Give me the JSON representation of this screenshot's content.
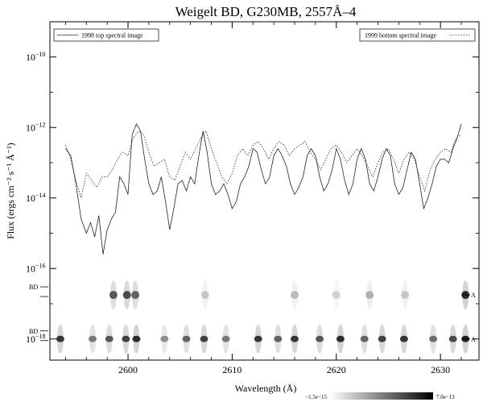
{
  "chart_data": {
    "type": "line",
    "title": "Weigelt BD, G230MB, 2557Å–4",
    "xlabel": "Wavelength (Å)",
    "ylabel": "Flux (ergs cm⁻² s⁻¹ Å⁻¹)",
    "xlim": [
      2592.5,
      2633.7
    ],
    "ylim_log10": [
      -18.6,
      -9
    ],
    "x_ticks": [
      {
        "value": 2600,
        "label": "2600"
      },
      {
        "value": 2610,
        "label": "2610"
      },
      {
        "value": 2620,
        "label": "2620"
      },
      {
        "value": 2630,
        "label": "2630"
      }
    ],
    "y_ticks": [
      {
        "exp": -10,
        "label": "10",
        "sup": "−10"
      },
      {
        "exp": -12,
        "label": "10",
        "sup": "−12"
      },
      {
        "exp": -14,
        "label": "10",
        "sup": "−14"
      },
      {
        "exp": -16,
        "label": "10",
        "sup": "−16"
      },
      {
        "exp": -18,
        "label": "10",
        "sup": "−18"
      }
    ],
    "legend": {
      "left_label": "1998 top spectral image",
      "right_label": "1999 bottom spectral image",
      "placement": "top"
    },
    "series": [
      {
        "name": "1998 top spectral image",
        "style": "solid",
        "x": [
          2594.0,
          2594.5,
          2595.0,
          2595.5,
          2596.0,
          2596.4,
          2596.8,
          2597.2,
          2597.6,
          2598.0,
          2598.4,
          2598.8,
          2599.2,
          2599.6,
          2600.0,
          2600.4,
          2600.8,
          2601.2,
          2601.6,
          2602.0,
          2602.4,
          2602.8,
          2603.2,
          2603.6,
          2604.0,
          2604.4,
          2604.8,
          2605.2,
          2605.6,
          2606.0,
          2606.4,
          2606.8,
          2607.2,
          2607.6,
          2608.0,
          2608.4,
          2608.8,
          2609.2,
          2609.6,
          2610.0,
          2610.4,
          2610.8,
          2611.2,
          2611.6,
          2612.0,
          2612.4,
          2612.8,
          2613.2,
          2613.6,
          2614.0,
          2614.4,
          2614.8,
          2615.2,
          2615.6,
          2616.0,
          2616.4,
          2616.8,
          2617.2,
          2617.6,
          2618.0,
          2618.4,
          2618.8,
          2619.2,
          2619.6,
          2620.0,
          2620.4,
          2620.8,
          2621.2,
          2621.6,
          2622.0,
          2622.4,
          2622.8,
          2623.2,
          2623.6,
          2624.0,
          2624.4,
          2624.8,
          2625.2,
          2625.6,
          2626.0,
          2626.4,
          2626.8,
          2627.2,
          2627.6,
          2628.0,
          2628.4,
          2628.8,
          2629.2,
          2629.6,
          2630.0,
          2630.4,
          2630.8,
          2631.2,
          2631.6,
          2632.0
        ],
        "log_flux": [
          -12.6,
          -12.8,
          -13.6,
          -14.6,
          -15.0,
          -14.7,
          -15.1,
          -14.5,
          -15.6,
          -14.9,
          -14.6,
          -14.4,
          -13.4,
          -13.6,
          -13.9,
          -12.2,
          -11.9,
          -12.1,
          -12.9,
          -13.6,
          -13.9,
          -13.8,
          -13.4,
          -14.1,
          -14.9,
          -14.3,
          -13.6,
          -13.5,
          -13.8,
          -13.4,
          -13.6,
          -12.8,
          -12.1,
          -12.7,
          -13.6,
          -13.9,
          -13.8,
          -13.6,
          -13.9,
          -14.3,
          -14.1,
          -13.6,
          -13.4,
          -13.1,
          -12.6,
          -12.7,
          -13.2,
          -13.6,
          -13.4,
          -12.8,
          -12.6,
          -12.8,
          -13.1,
          -13.6,
          -13.9,
          -13.7,
          -13.4,
          -12.8,
          -12.6,
          -12.8,
          -13.4,
          -13.8,
          -13.6,
          -13.2,
          -12.6,
          -12.9,
          -13.5,
          -13.9,
          -13.6,
          -12.9,
          -12.6,
          -12.9,
          -13.6,
          -13.8,
          -13.4,
          -12.9,
          -12.6,
          -12.8,
          -13.6,
          -13.9,
          -13.7,
          -13.2,
          -12.7,
          -12.9,
          -13.6,
          -14.3,
          -14.0,
          -13.6,
          -13.1,
          -12.9,
          -12.9,
          -13.0,
          -12.6,
          -12.3,
          -11.9
        ]
      },
      {
        "name": "1999 bottom spectral image",
        "style": "dotted",
        "x": [
          2594.0,
          2594.5,
          2595.0,
          2595.5,
          2596.0,
          2596.5,
          2597.0,
          2597.5,
          2598.0,
          2598.5,
          2599.0,
          2599.5,
          2600.0,
          2600.5,
          2601.0,
          2601.5,
          2602.0,
          2602.5,
          2603.0,
          2603.5,
          2604.0,
          2604.5,
          2605.0,
          2605.5,
          2606.0,
          2606.5,
          2607.0,
          2607.5,
          2608.0,
          2608.5,
          2609.0,
          2609.5,
          2610.0,
          2610.5,
          2611.0,
          2611.5,
          2612.0,
          2612.5,
          2613.0,
          2613.5,
          2614.0,
          2614.5,
          2615.0,
          2615.5,
          2616.0,
          2616.5,
          2617.0,
          2617.5,
          2618.0,
          2618.5,
          2619.0,
          2619.5,
          2620.0,
          2620.5,
          2621.0,
          2621.5,
          2622.0,
          2622.5,
          2623.0,
          2623.5,
          2624.0,
          2624.5,
          2625.0,
          2625.5,
          2626.0,
          2626.5,
          2627.0,
          2627.5,
          2628.0,
          2628.5,
          2629.0,
          2629.5,
          2630.0,
          2630.5,
          2631.0,
          2631.5,
          2632.0
        ],
        "log_flux": [
          -12.5,
          -12.9,
          -13.5,
          -14.0,
          -13.3,
          -13.5,
          -13.7,
          -13.4,
          -13.4,
          -13.2,
          -12.9,
          -12.7,
          -12.8,
          -12.3,
          -12.1,
          -12.2,
          -12.7,
          -13.1,
          -13.0,
          -12.9,
          -13.4,
          -13.5,
          -13.1,
          -12.7,
          -12.9,
          -12.6,
          -12.3,
          -12.1,
          -12.6,
          -13.0,
          -13.4,
          -13.6,
          -13.3,
          -12.8,
          -12.6,
          -12.8,
          -12.5,
          -12.4,
          -12.6,
          -12.9,
          -12.6,
          -12.4,
          -12.5,
          -12.8,
          -12.6,
          -12.5,
          -12.4,
          -12.7,
          -12.9,
          -13.2,
          -12.9,
          -12.6,
          -12.5,
          -12.7,
          -13.0,
          -12.8,
          -12.6,
          -12.8,
          -13.1,
          -13.4,
          -13.0,
          -12.7,
          -12.6,
          -12.9,
          -13.3,
          -12.9,
          -12.7,
          -12.9,
          -13.4,
          -13.8,
          -13.2,
          -12.9,
          -12.7,
          -12.6,
          -12.7,
          -12.3,
          -12.2
        ]
      }
    ],
    "spectral_image": {
      "colorbar_min_label": "−1.5e−15",
      "colorbar_max_label": "7.0e−13",
      "rows": [
        {
          "label_left": "BD",
          "label_right": "A",
          "center_exp": -16.75
        },
        {
          "label_left": "BD",
          "label_right": "A",
          "center_exp": -18.0
        }
      ],
      "dark_spots": [
        {
          "row": 0,
          "x": 2598.6,
          "intensity": 0.75
        },
        {
          "row": 0,
          "x": 2599.9,
          "intensity": 0.8
        },
        {
          "row": 0,
          "x": 2600.7,
          "intensity": 0.7
        },
        {
          "row": 0,
          "x": 2607.4,
          "intensity": 0.25
        },
        {
          "row": 0,
          "x": 2616.0,
          "intensity": 0.3
        },
        {
          "row": 0,
          "x": 2620.0,
          "intensity": 0.2
        },
        {
          "row": 0,
          "x": 2623.2,
          "intensity": 0.35
        },
        {
          "row": 0,
          "x": 2626.6,
          "intensity": 0.25
        },
        {
          "row": 0,
          "x": 2632.4,
          "intensity": 0.95
        },
        {
          "row": 1,
          "x": 2593.5,
          "intensity": 0.9
        },
        {
          "row": 1,
          "x": 2596.6,
          "intensity": 0.6
        },
        {
          "row": 1,
          "x": 2598.2,
          "intensity": 0.75
        },
        {
          "row": 1,
          "x": 2599.8,
          "intensity": 0.85
        },
        {
          "row": 1,
          "x": 2600.8,
          "intensity": 0.95
        },
        {
          "row": 1,
          "x": 2603.5,
          "intensity": 0.5
        },
        {
          "row": 1,
          "x": 2605.6,
          "intensity": 0.7
        },
        {
          "row": 1,
          "x": 2607.3,
          "intensity": 0.85
        },
        {
          "row": 1,
          "x": 2609.4,
          "intensity": 0.6
        },
        {
          "row": 1,
          "x": 2612.5,
          "intensity": 0.9
        },
        {
          "row": 1,
          "x": 2614.4,
          "intensity": 0.7
        },
        {
          "row": 1,
          "x": 2616.0,
          "intensity": 0.9
        },
        {
          "row": 1,
          "x": 2618.4,
          "intensity": 0.75
        },
        {
          "row": 1,
          "x": 2620.4,
          "intensity": 0.95
        },
        {
          "row": 1,
          "x": 2622.7,
          "intensity": 0.7
        },
        {
          "row": 1,
          "x": 2624.4,
          "intensity": 0.85
        },
        {
          "row": 1,
          "x": 2626.5,
          "intensity": 0.9
        },
        {
          "row": 1,
          "x": 2629.3,
          "intensity": 0.65
        },
        {
          "row": 1,
          "x": 2631.2,
          "intensity": 0.8
        },
        {
          "row": 1,
          "x": 2632.4,
          "intensity": 1.0
        }
      ]
    }
  }
}
